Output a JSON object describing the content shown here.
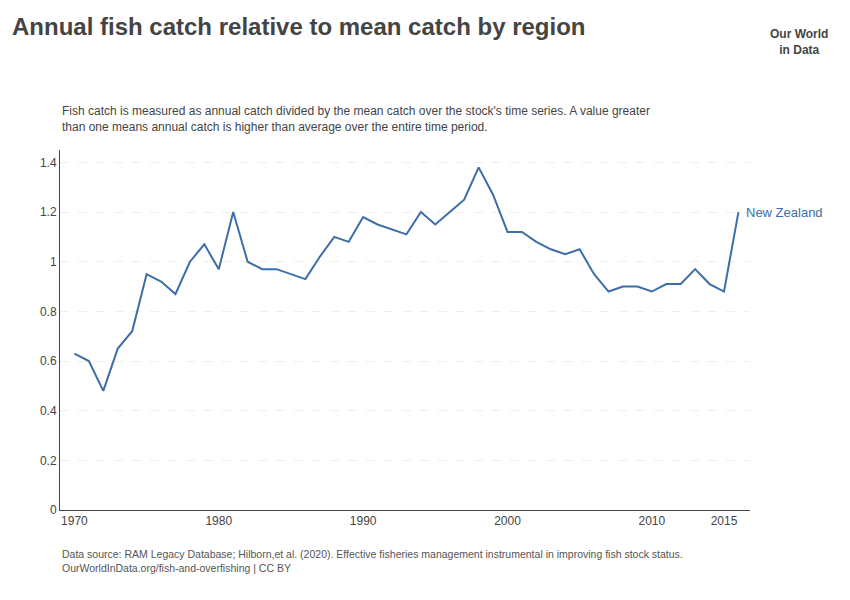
{
  "chart_data": {
    "type": "line",
    "title": "Annual fish catch relative to mean catch by region",
    "subtitle": "Fish catch is measured as annual catch divided by the mean catch over the stock's time series. A value greater\nthan one means annual catch is higher than average over the entire time period.",
    "x": [
      1970,
      1971,
      1972,
      1973,
      1974,
      1975,
      1976,
      1977,
      1978,
      1979,
      1980,
      1981,
      1982,
      1983,
      1984,
      1985,
      1986,
      1987,
      1988,
      1989,
      1990,
      1991,
      1992,
      1993,
      1994,
      1995,
      1996,
      1997,
      1998,
      1999,
      2000,
      2001,
      2002,
      2003,
      2004,
      2005,
      2006,
      2007,
      2008,
      2009,
      2010,
      2011,
      2012,
      2013,
      2014,
      2015,
      2016
    ],
    "series": [
      {
        "name": "New Zealand",
        "color": "#3d6ea8",
        "values": [
          0.63,
          0.6,
          0.48,
          0.65,
          0.72,
          0.95,
          0.92,
          0.87,
          1.0,
          1.07,
          0.97,
          1.2,
          1.0,
          0.97,
          0.97,
          0.95,
          0.93,
          1.02,
          1.1,
          1.08,
          1.18,
          1.15,
          1.13,
          1.11,
          1.2,
          1.15,
          1.2,
          1.25,
          1.38,
          1.27,
          1.12,
          1.12,
          1.08,
          1.05,
          1.03,
          1.05,
          0.95,
          0.88,
          0.9,
          0.9,
          0.88,
          0.91,
          0.91,
          0.97,
          0.91,
          0.88,
          1.2
        ]
      }
    ],
    "xlim": [
      1969,
      2016.8
    ],
    "xticks": [
      1970,
      1980,
      1990,
      2000,
      2010,
      2015
    ],
    "ylim": [
      0,
      1.45
    ],
    "yticks": [
      0,
      0.2,
      0.4,
      0.6,
      0.8,
      1,
      1.2,
      1.4
    ],
    "grid": "y",
    "annotations": [
      "Data source: RAM Legacy Database; Hilborn,et al. (2020). Effective fisheries management instrumental in improving fish stock status.\nOurWorldInData.org/fish-and-overfishing | CC BY",
      "Our World\nin Data"
    ]
  }
}
